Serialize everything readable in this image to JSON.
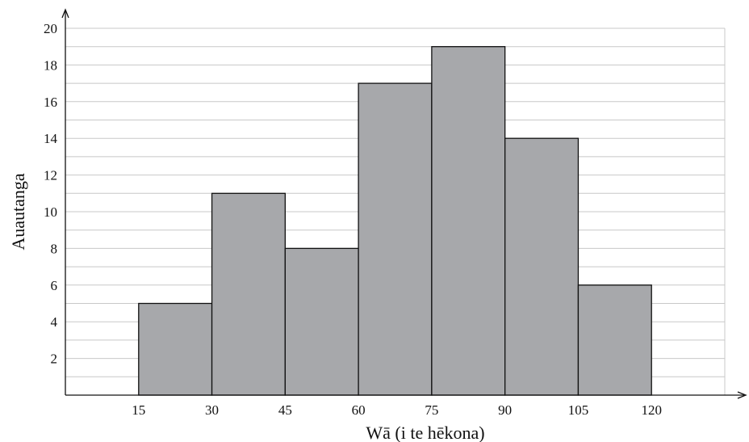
{
  "chart_data": {
    "type": "bar",
    "subtype": "histogram",
    "title": "",
    "xlabel": "Wā (i te hēkona)",
    "ylabel": "Auautanga",
    "bins": [
      {
        "start": 15,
        "end": 30,
        "value": 5
      },
      {
        "start": 30,
        "end": 45,
        "value": 11
      },
      {
        "start": 45,
        "end": 60,
        "value": 8
      },
      {
        "start": 60,
        "end": 75,
        "value": 17
      },
      {
        "start": 75,
        "end": 90,
        "value": 19
      },
      {
        "start": 90,
        "end": 105,
        "value": 14
      },
      {
        "start": 105,
        "end": 120,
        "value": 6
      }
    ],
    "x_ticks": [
      15,
      30,
      45,
      60,
      75,
      90,
      105,
      120
    ],
    "y_ticks": [
      2,
      4,
      6,
      8,
      10,
      12,
      14,
      16,
      18,
      20
    ],
    "xlim": [
      0,
      135
    ],
    "ylim": [
      0,
      20
    ],
    "grid": true,
    "grid_minor_step": 1,
    "bar_color": "#a7a8ab",
    "edge_color": "#111111"
  }
}
